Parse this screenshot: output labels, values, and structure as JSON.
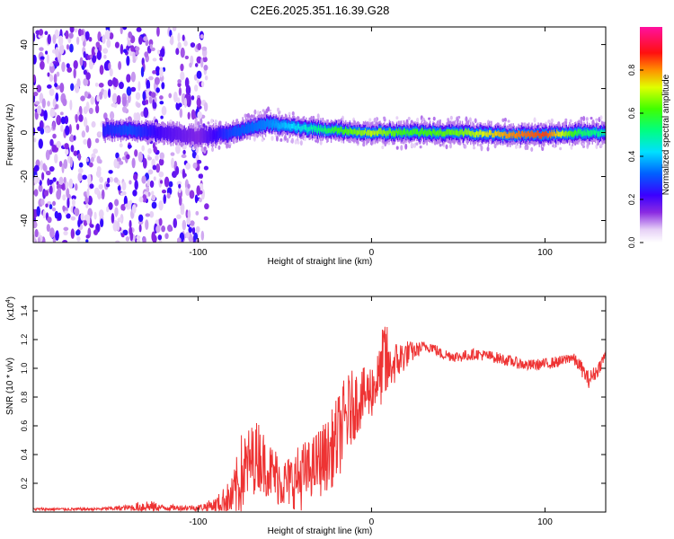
{
  "figure_title": "C2E6.2025.351.16.39.G28",
  "chart_data": [
    {
      "type": "heatmap",
      "title": "",
      "xlabel": "Height of straight line (km)",
      "ylabel": "Frequency (Hz)",
      "xlim": [
        -195,
        135
      ],
      "ylim": [
        -50,
        48
      ],
      "x_ticks": [
        -100,
        0,
        100
      ],
      "x_tick_labels": [
        "-100",
        "0",
        "100"
      ],
      "y_ticks": [
        -40,
        -20,
        0,
        20,
        40
      ],
      "y_tick_labels": [
        "-40",
        "-20",
        "0",
        "20",
        "40"
      ],
      "colorbar": {
        "label": "Normalized spectral amplitude",
        "range": [
          0,
          1
        ],
        "ticks": [
          0,
          0.2,
          0.4,
          0.6,
          0.8
        ],
        "tick_labels": [
          "0.0",
          "0.2",
          "0.4",
          "0.6",
          "0.8"
        ],
        "colormap": "rainbow (white-violet-blue-cyan-green-yellow-red-magenta)"
      },
      "ridge": {
        "description": "dominant frequency ridge centred near 0 Hz",
        "x": [
          -155,
          -140,
          -120,
          -100,
          -80,
          -60,
          -40,
          -20,
          0,
          20,
          50,
          80,
          100,
          120,
          135
        ],
        "freq": [
          1,
          1,
          0,
          -2,
          0,
          4,
          2,
          1,
          0,
          0,
          0,
          -1,
          -1,
          0,
          0
        ],
        "amplitude": [
          0.25,
          0.3,
          0.2,
          0.15,
          0.3,
          0.35,
          0.45,
          0.6,
          0.7,
          0.6,
          0.65,
          0.8,
          0.85,
          0.55,
          0.5
        ]
      },
      "noise_region": {
        "x_from": -195,
        "x_to": -95
      }
    },
    {
      "type": "line",
      "title": "",
      "xlabel": "Height of straight line (km)",
      "ylabel": "SNR (10 * v/v)",
      "y_multiplier_label": "(x10",
      "y_multiplier_exp": "4",
      "y_multiplier_close": ")",
      "xlim": [
        -195,
        135
      ],
      "ylim": [
        0,
        1.5
      ],
      "x_ticks": [
        -100,
        0,
        100
      ],
      "x_tick_labels": [
        "-100",
        "0",
        "100"
      ],
      "y_ticks": [
        0.2,
        0.4,
        0.6,
        0.8,
        1.0,
        1.2,
        1.4
      ],
      "y_tick_labels": [
        "0.2",
        "0.4",
        "0.6",
        "0.8",
        "1.0",
        "1.2",
        "1.4"
      ],
      "color": "#ee3333",
      "series": [
        {
          "name": "SNR",
          "x": [
            -195,
            -180,
            -160,
            -140,
            -130,
            -120,
            -100,
            -90,
            -80,
            -75,
            -70,
            -65,
            -60,
            -55,
            -50,
            -45,
            -40,
            -35,
            -30,
            -25,
            -20,
            -15,
            -10,
            -5,
            0,
            5,
            8,
            10,
            15,
            20,
            25,
            30,
            35,
            40,
            50,
            60,
            70,
            80,
            90,
            100,
            110,
            115,
            120,
            125,
            130,
            135
          ],
          "y": [
            0.02,
            0.02,
            0.02,
            0.03,
            0.04,
            0.03,
            0.03,
            0.05,
            0.1,
            0.25,
            0.35,
            0.4,
            0.3,
            0.25,
            0.2,
            0.22,
            0.25,
            0.3,
            0.35,
            0.4,
            0.5,
            0.65,
            0.75,
            0.8,
            0.85,
            0.95,
            1.05,
            1.0,
            1.05,
            1.1,
            1.12,
            1.15,
            1.15,
            1.1,
            1.08,
            1.1,
            1.08,
            1.05,
            1.02,
            1.03,
            1.05,
            1.08,
            1.02,
            0.92,
            0.98,
            1.1
          ],
          "noise_amplitude": [
            0.01,
            0.01,
            0.01,
            0.02,
            0.05,
            0.02,
            0.02,
            0.05,
            0.15,
            0.3,
            0.25,
            0.25,
            0.2,
            0.2,
            0.18,
            0.2,
            0.25,
            0.2,
            0.25,
            0.25,
            0.3,
            0.3,
            0.25,
            0.2,
            0.2,
            0.2,
            0.4,
            0.15,
            0.15,
            0.1,
            0.06,
            0.04,
            0.04,
            0.04,
            0.04,
            0.04,
            0.04,
            0.04,
            0.04,
            0.04,
            0.04,
            0.04,
            0.05,
            0.06,
            0.05,
            0.04
          ]
        }
      ]
    }
  ]
}
